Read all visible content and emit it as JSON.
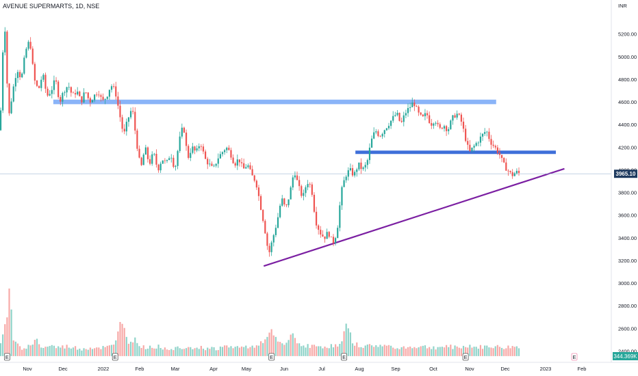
{
  "header": {
    "title": "AVENUE SUPERMARTS, 1D, NSE"
  },
  "chart_data": {
    "type": "candlestick",
    "currency_label": "INR",
    "ylim": [
      2300,
      5500
    ],
    "y_ticks": [
      2400,
      2600,
      2800,
      3000,
      3200,
      3400,
      3600,
      3800,
      4000,
      4200,
      4400,
      4600,
      4800,
      5000,
      5200
    ],
    "y_tick_labels": [
      "2400.00",
      "2600.00",
      "2800.00",
      "3000.00",
      "3200.00",
      "3400.00",
      "3600.00",
      "3800.00",
      "4000.00",
      "4200.00",
      "4400.00",
      "4600.00",
      "4800.00",
      "5000.00",
      "5200.00"
    ],
    "x_labels": [
      "Nov",
      "Dec",
      "2022",
      "Feb",
      "Mar",
      "Apr",
      "May",
      "Jun",
      "Jul",
      "Aug",
      "Sep",
      "Oct",
      "Nov",
      "Dec",
      "2023",
      "Feb"
    ],
    "last_price": "3965.10",
    "last_volume": "344.369K",
    "price_path": [
      [
        0,
        4350
      ],
      [
        6,
        5400
      ],
      [
        12,
        4450
      ],
      [
        18,
        4700
      ],
      [
        24,
        4900
      ],
      [
        30,
        4800
      ],
      [
        36,
        5050
      ],
      [
        42,
        5150
      ],
      [
        48,
        4800
      ],
      [
        54,
        4700
      ],
      [
        60,
        4850
      ],
      [
        66,
        4650
      ],
      [
        72,
        4700
      ],
      [
        78,
        4800
      ],
      [
        84,
        4600
      ],
      [
        90,
        4700
      ],
      [
        96,
        4750
      ],
      [
        102,
        4650
      ],
      [
        108,
        4700
      ],
      [
        114,
        4600
      ],
      [
        120,
        4700
      ],
      [
        126,
        4600
      ],
      [
        132,
        4650
      ],
      [
        138,
        4700
      ],
      [
        144,
        4600
      ],
      [
        150,
        4650
      ],
      [
        156,
        4750
      ],
      [
        162,
        4700
      ],
      [
        168,
        4500
      ],
      [
        174,
        4300
      ],
      [
        180,
        4450
      ],
      [
        186,
        4550
      ],
      [
        192,
        4250
      ],
      [
        198,
        4000
      ],
      [
        204,
        4200
      ],
      [
        210,
        4050
      ],
      [
        216,
        4150
      ],
      [
        222,
        4000
      ],
      [
        228,
        4100
      ],
      [
        234,
        4050
      ],
      [
        240,
        4150
      ],
      [
        246,
        4000
      ],
      [
        252,
        4250
      ],
      [
        258,
        4400
      ],
      [
        264,
        4100
      ],
      [
        270,
        4200
      ],
      [
        276,
        4150
      ],
      [
        282,
        4250
      ],
      [
        288,
        4100
      ],
      [
        294,
        4050
      ],
      [
        300,
        4000
      ],
      [
        306,
        4100
      ],
      [
        312,
        4150
      ],
      [
        318,
        4200
      ],
      [
        324,
        4150
      ],
      [
        330,
        4050
      ],
      [
        336,
        4100
      ],
      [
        342,
        4000
      ],
      [
        348,
        4050
      ],
      [
        354,
        3950
      ],
      [
        360,
        3900
      ],
      [
        366,
        3700
      ],
      [
        372,
        3500
      ],
      [
        378,
        3250
      ],
      [
        384,
        3400
      ],
      [
        390,
        3550
      ],
      [
        396,
        3750
      ],
      [
        402,
        3650
      ],
      [
        408,
        3800
      ],
      [
        414,
        4000
      ],
      [
        420,
        3850
      ],
      [
        426,
        3750
      ],
      [
        432,
        3900
      ],
      [
        438,
        3850
      ],
      [
        444,
        3550
      ],
      [
        450,
        3450
      ],
      [
        456,
        3400
      ],
      [
        462,
        3450
      ],
      [
        468,
        3350
      ],
      [
        474,
        3450
      ],
      [
        480,
        3800
      ],
      [
        486,
        3950
      ],
      [
        492,
        4000
      ],
      [
        498,
        3950
      ],
      [
        504,
        4050
      ],
      [
        510,
        4000
      ],
      [
        516,
        4050
      ],
      [
        522,
        4250
      ],
      [
        528,
        4350
      ],
      [
        534,
        4300
      ],
      [
        540,
        4350
      ],
      [
        546,
        4400
      ],
      [
        552,
        4450
      ],
      [
        558,
        4500
      ],
      [
        564,
        4400
      ],
      [
        570,
        4500
      ],
      [
        576,
        4550
      ],
      [
        582,
        4600
      ],
      [
        588,
        4500
      ],
      [
        594,
        4450
      ],
      [
        600,
        4500
      ],
      [
        606,
        4400
      ],
      [
        612,
        4450
      ],
      [
        618,
        4350
      ],
      [
        624,
        4400
      ],
      [
        630,
        4350
      ],
      [
        636,
        4450
      ],
      [
        642,
        4500
      ],
      [
        648,
        4450
      ],
      [
        654,
        4300
      ],
      [
        660,
        4150
      ],
      [
        666,
        4200
      ],
      [
        672,
        4250
      ],
      [
        678,
        4300
      ],
      [
        684,
        4350
      ],
      [
        690,
        4250
      ],
      [
        696,
        4200
      ],
      [
        702,
        4150
      ],
      [
        708,
        4050
      ],
      [
        714,
        4000
      ],
      [
        720,
        3950
      ],
      [
        726,
        3980
      ],
      [
        732,
        3965
      ]
    ],
    "volume_path": [
      [
        0,
        2420
      ],
      [
        6,
        2600
      ],
      [
        10,
        2700
      ],
      [
        14,
        3050
      ],
      [
        18,
        2500
      ],
      [
        24,
        2450
      ],
      [
        30,
        2430
      ],
      [
        40,
        2440
      ],
      [
        52,
        2500
      ],
      [
        60,
        2420
      ],
      [
        70,
        2450
      ],
      [
        80,
        2430
      ],
      [
        96,
        2440
      ],
      [
        112,
        2420
      ],
      [
        130,
        2430
      ],
      [
        150,
        2430
      ],
      [
        162,
        2450
      ],
      [
        170,
        2700
      ],
      [
        180,
        2480
      ],
      [
        190,
        2500
      ],
      [
        200,
        2430
      ],
      [
        220,
        2440
      ],
      [
        240,
        2420
      ],
      [
        260,
        2440
      ],
      [
        280,
        2430
      ],
      [
        300,
        2420
      ],
      [
        320,
        2440
      ],
      [
        340,
        2430
      ],
      [
        360,
        2450
      ],
      [
        375,
        2500
      ],
      [
        382,
        2580
      ],
      [
        390,
        2480
      ],
      [
        400,
        2450
      ],
      [
        412,
        2550
      ],
      [
        420,
        2460
      ],
      [
        440,
        2440
      ],
      [
        460,
        2440
      ],
      [
        480,
        2450
      ],
      [
        488,
        2670
      ],
      [
        496,
        2470
      ],
      [
        510,
        2440
      ],
      [
        530,
        2450
      ],
      [
        550,
        2440
      ],
      [
        570,
        2430
      ],
      [
        590,
        2440
      ],
      [
        610,
        2430
      ],
      [
        630,
        2440
      ],
      [
        650,
        2430
      ],
      [
        660,
        2450
      ],
      [
        670,
        2430
      ],
      [
        690,
        2440
      ],
      [
        710,
        2430
      ],
      [
        730,
        2440
      ]
    ],
    "annotations": [
      {
        "type": "rectangle",
        "label": "",
        "y_range": [
          4580,
          4620
        ],
        "x_range": [
          75,
          698
        ],
        "color": "#8ab4f8"
      },
      {
        "type": "rectangle",
        "label": "",
        "y_range": [
          4140,
          4170
        ],
        "x_range": [
          500,
          782
        ],
        "color": "#3f6fd9"
      },
      {
        "type": "trendline",
        "label": "",
        "from": [
          371,
          3150
        ],
        "to": [
          794,
          4010
        ],
        "color": "#7b1fa2"
      }
    ],
    "event_markers": [
      {
        "x": 10,
        "label": "E"
      },
      {
        "x": 162,
        "label": "E"
      },
      {
        "x": 382,
        "label": "E"
      },
      {
        "x": 484,
        "label": "E"
      },
      {
        "x": 655,
        "label": "E"
      },
      {
        "x": 808,
        "label": "E"
      }
    ],
    "colors": {
      "up": "#26a69a",
      "down": "#ef5350",
      "up_volume": "#8fd3c9",
      "down_volume": "#f7a9a7",
      "last_price_tag": "#1e3a5f",
      "axis_text": "#131722"
    }
  }
}
